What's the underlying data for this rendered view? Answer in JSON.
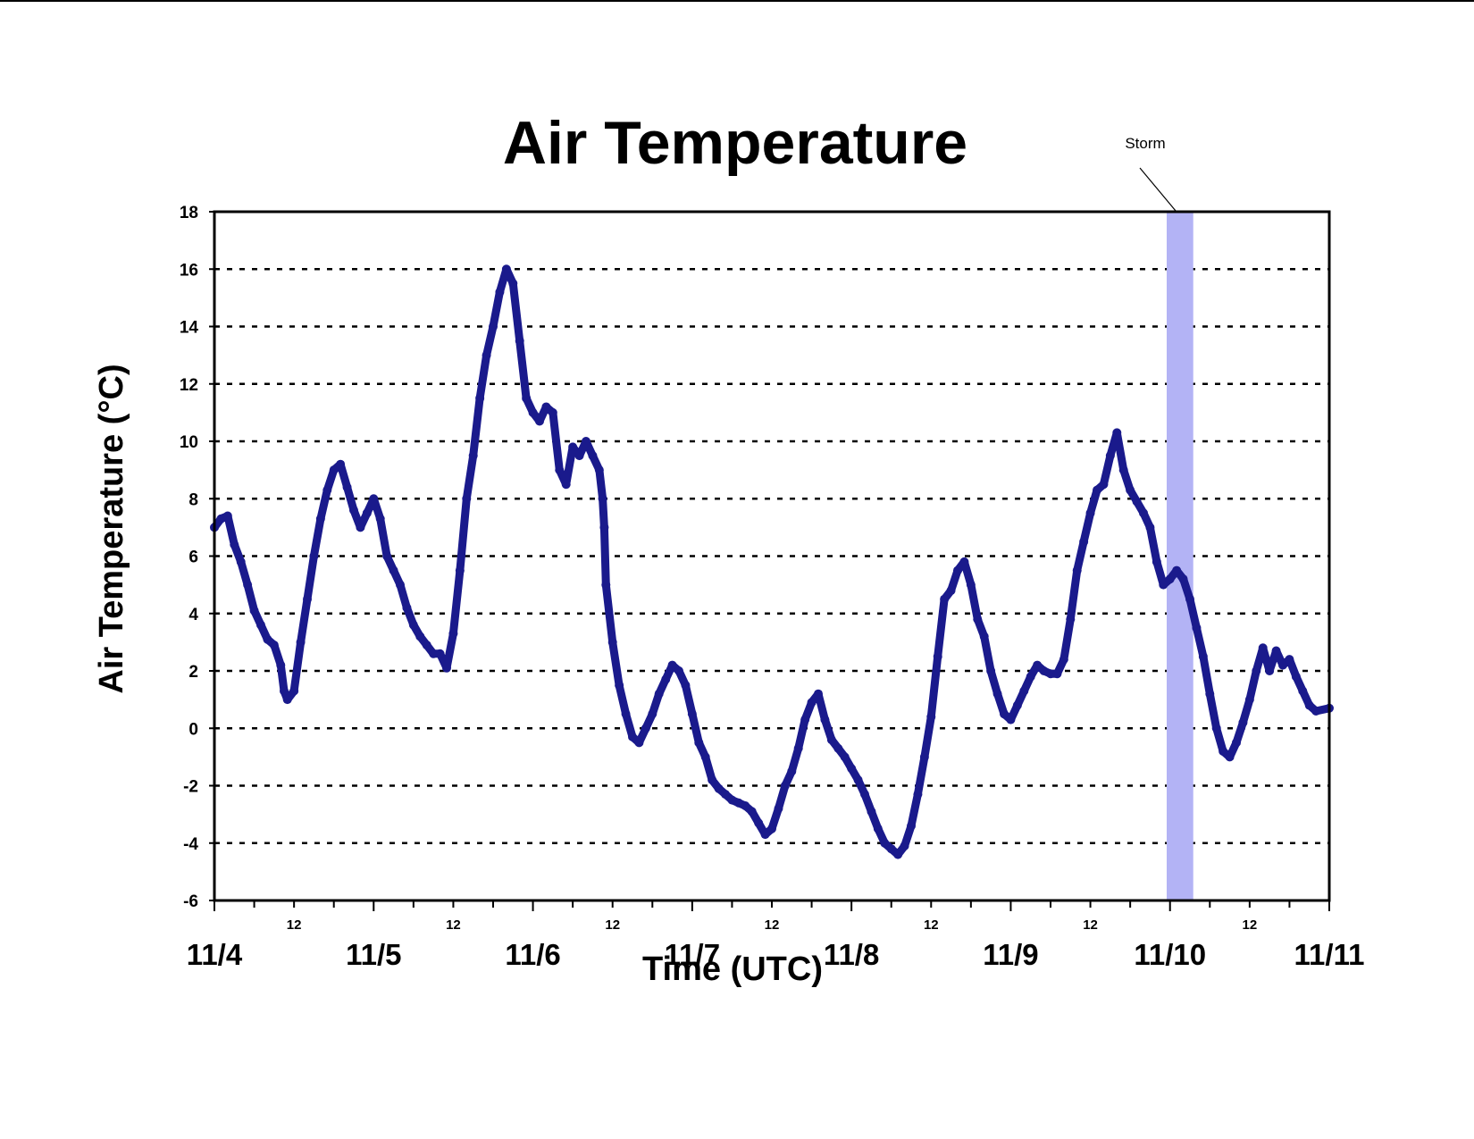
{
  "chart_data": {
    "type": "line",
    "title": "Air Temperature",
    "xlabel": "Time (UTC)",
    "ylabel": "Air Temperature (°C)",
    "ylim": [
      -6,
      18
    ],
    "yticks": [
      -6,
      -4,
      -2,
      0,
      2,
      4,
      6,
      8,
      10,
      12,
      14,
      16,
      18
    ],
    "ytick_labels": [
      "-6",
      "-4",
      "-2",
      "0",
      "2",
      "4",
      "6",
      "8",
      "10",
      "12",
      "14",
      "16",
      "18"
    ],
    "xlim": [
      "11/4 00:00",
      "11/11 00:00"
    ],
    "x_date_labels": [
      "11/4",
      "11/5",
      "11/6",
      "11/7",
      "11/8",
      "11/9",
      "11/10",
      "11/11"
    ],
    "x_noon_label": "12",
    "x_noon_labels": [
      "12",
      "12",
      "12",
      "12",
      "12",
      "12",
      "12"
    ],
    "grid": "horizontal dashed",
    "line_color": "#1a1a8c",
    "storm_band_color": "#b3b3f5",
    "storm_band": {
      "label": "Storm",
      "start": "11/9 23:30",
      "end": "11/10 03:30"
    },
    "series": [
      {
        "x_format": "M/D HH:MM",
        "points": [
          [
            "11/4 00:00",
            7.0
          ],
          [
            "11/4 01:00",
            7.3
          ],
          [
            "11/4 02:00",
            7.4
          ],
          [
            "11/4 03:00",
            6.4
          ],
          [
            "11/4 04:00",
            5.8
          ],
          [
            "11/4 05:00",
            5.0
          ],
          [
            "11/4 06:00",
            4.1
          ],
          [
            "11/4 07:00",
            3.6
          ],
          [
            "11/4 08:00",
            3.1
          ],
          [
            "11/4 09:00",
            2.9
          ],
          [
            "11/4 10:00",
            2.2
          ],
          [
            "11/4 10:30",
            1.3
          ],
          [
            "11/4 11:00",
            1.0
          ],
          [
            "11/4 12:00",
            1.3
          ],
          [
            "11/4 13:00",
            3.0
          ],
          [
            "11/4 14:00",
            4.5
          ],
          [
            "11/4 15:00",
            6.0
          ],
          [
            "11/4 16:00",
            7.3
          ],
          [
            "11/4 17:00",
            8.3
          ],
          [
            "11/4 18:00",
            9.0
          ],
          [
            "11/4 19:00",
            9.2
          ],
          [
            "11/4 20:00",
            8.4
          ],
          [
            "11/4 21:00",
            7.6
          ],
          [
            "11/4 22:00",
            7.0
          ],
          [
            "11/4 23:00",
            7.5
          ],
          [
            "11/5 00:00",
            8.0
          ],
          [
            "11/5 01:00",
            7.3
          ],
          [
            "11/5 02:00",
            6.0
          ],
          [
            "11/5 03:00",
            5.5
          ],
          [
            "11/5 04:00",
            5.0
          ],
          [
            "11/5 05:00",
            4.2
          ],
          [
            "11/5 06:00",
            3.6
          ],
          [
            "11/5 07:00",
            3.2
          ],
          [
            "11/5 08:00",
            2.9
          ],
          [
            "11/5 09:00",
            2.6
          ],
          [
            "11/5 10:00",
            2.6
          ],
          [
            "11/5 11:00",
            2.1
          ],
          [
            "11/5 12:00",
            3.3
          ],
          [
            "11/5 13:00",
            5.5
          ],
          [
            "11/5 14:00",
            8.0
          ],
          [
            "11/5 15:00",
            9.5
          ],
          [
            "11/5 16:00",
            11.5
          ],
          [
            "11/5 17:00",
            13.0
          ],
          [
            "11/5 18:00",
            14.0
          ],
          [
            "11/5 19:00",
            15.2
          ],
          [
            "11/5 20:00",
            16.0
          ],
          [
            "11/5 21:00",
            15.5
          ],
          [
            "11/5 22:00",
            13.5
          ],
          [
            "11/5 23:00",
            11.5
          ],
          [
            "11/6 00:00",
            11.0
          ],
          [
            "11/6 01:00",
            10.7
          ],
          [
            "11/6 02:00",
            11.2
          ],
          [
            "11/6 03:00",
            11.0
          ],
          [
            "11/6 04:00",
            9.0
          ],
          [
            "11/6 05:00",
            8.5
          ],
          [
            "11/6 06:00",
            9.8
          ],
          [
            "11/6 07:00",
            9.5
          ],
          [
            "11/6 08:00",
            10.0
          ],
          [
            "11/6 09:00",
            9.5
          ],
          [
            "11/6 10:00",
            9.0
          ],
          [
            "11/6 10:30",
            8.0
          ],
          [
            "11/6 10:45",
            7.0
          ],
          [
            "11/6 11:00",
            5.0
          ],
          [
            "11/6 12:00",
            3.0
          ],
          [
            "11/6 13:00",
            1.5
          ],
          [
            "11/6 14:00",
            0.5
          ],
          [
            "11/6 15:00",
            -0.3
          ],
          [
            "11/6 16:00",
            -0.5
          ],
          [
            "11/6 17:00",
            0.0
          ],
          [
            "11/6 18:00",
            0.5
          ],
          [
            "11/6 19:00",
            1.2
          ],
          [
            "11/6 20:00",
            1.7
          ],
          [
            "11/6 21:00",
            2.2
          ],
          [
            "11/6 22:00",
            2.0
          ],
          [
            "11/6 23:00",
            1.5
          ],
          [
            "11/7 00:00",
            0.5
          ],
          [
            "11/7 01:00",
            -0.5
          ],
          [
            "11/7 02:00",
            -1.0
          ],
          [
            "11/7 03:00",
            -1.8
          ],
          [
            "11/7 04:00",
            -2.1
          ],
          [
            "11/7 05:00",
            -2.3
          ],
          [
            "11/7 06:00",
            -2.5
          ],
          [
            "11/7 07:00",
            -2.6
          ],
          [
            "11/7 08:00",
            -2.7
          ],
          [
            "11/7 09:00",
            -2.9
          ],
          [
            "11/7 10:00",
            -3.3
          ],
          [
            "11/7 11:00",
            -3.7
          ],
          [
            "11/7 12:00",
            -3.5
          ],
          [
            "11/7 13:00",
            -2.8
          ],
          [
            "11/7 14:00",
            -2.0
          ],
          [
            "11/7 15:00",
            -1.5
          ],
          [
            "11/7 16:00",
            -0.7
          ],
          [
            "11/7 17:00",
            0.3
          ],
          [
            "11/7 18:00",
            0.9
          ],
          [
            "11/7 19:00",
            1.2
          ],
          [
            "11/7 20:00",
            0.3
          ],
          [
            "11/7 21:00",
            -0.4
          ],
          [
            "11/7 22:00",
            -0.7
          ],
          [
            "11/7 23:00",
            -1.0
          ],
          [
            "11/8 00:00",
            -1.4
          ],
          [
            "11/8 01:00",
            -1.8
          ],
          [
            "11/8 02:00",
            -2.3
          ],
          [
            "11/8 03:00",
            -2.9
          ],
          [
            "11/8 04:00",
            -3.5
          ],
          [
            "11/8 05:00",
            -4.0
          ],
          [
            "11/8 06:00",
            -4.2
          ],
          [
            "11/8 07:00",
            -4.4
          ],
          [
            "11/8 08:00",
            -4.1
          ],
          [
            "11/8 09:00",
            -3.4
          ],
          [
            "11/8 10:00",
            -2.3
          ],
          [
            "11/8 11:00",
            -1.0
          ],
          [
            "11/8 12:00",
            0.4
          ],
          [
            "11/8 13:00",
            2.5
          ],
          [
            "11/8 14:00",
            4.5
          ],
          [
            "11/8 15:00",
            4.8
          ],
          [
            "11/8 16:00",
            5.5
          ],
          [
            "11/8 17:00",
            5.8
          ],
          [
            "11/8 18:00",
            5.0
          ],
          [
            "11/8 19:00",
            3.8
          ],
          [
            "11/8 20:00",
            3.2
          ],
          [
            "11/8 21:00",
            2.0
          ],
          [
            "11/8 22:00",
            1.2
          ],
          [
            "11/8 23:00",
            0.5
          ],
          [
            "11/9 00:00",
            0.3
          ],
          [
            "11/9 01:00",
            0.8
          ],
          [
            "11/9 02:00",
            1.3
          ],
          [
            "11/9 03:00",
            1.8
          ],
          [
            "11/9 04:00",
            2.2
          ],
          [
            "11/9 05:00",
            2.0
          ],
          [
            "11/9 06:00",
            1.9
          ],
          [
            "11/9 07:00",
            1.9
          ],
          [
            "11/9 08:00",
            2.4
          ],
          [
            "11/9 09:00",
            3.8
          ],
          [
            "11/9 10:00",
            5.5
          ],
          [
            "11/9 11:00",
            6.5
          ],
          [
            "11/9 12:00",
            7.5
          ],
          [
            "11/9 13:00",
            8.3
          ],
          [
            "11/9 14:00",
            8.5
          ],
          [
            "11/9 15:00",
            9.5
          ],
          [
            "11/9 16:00",
            10.3
          ],
          [
            "11/9 17:00",
            9.0
          ],
          [
            "11/9 18:00",
            8.3
          ],
          [
            "11/9 19:00",
            7.9
          ],
          [
            "11/9 20:00",
            7.5
          ],
          [
            "11/9 21:00",
            7.0
          ],
          [
            "11/9 22:00",
            5.8
          ],
          [
            "11/9 23:00",
            5.0
          ],
          [
            "11/10 00:00",
            5.2
          ],
          [
            "11/10 01:00",
            5.5
          ],
          [
            "11/10 02:00",
            5.2
          ],
          [
            "11/10 03:00",
            4.5
          ],
          [
            "11/10 04:00",
            3.5
          ],
          [
            "11/10 05:00",
            2.5
          ],
          [
            "11/10 06:00",
            1.2
          ],
          [
            "11/10 07:00",
            0.0
          ],
          [
            "11/10 08:00",
            -0.8
          ],
          [
            "11/10 09:00",
            -1.0
          ],
          [
            "11/10 10:00",
            -0.5
          ],
          [
            "11/10 11:00",
            0.2
          ],
          [
            "11/10 12:00",
            1.0
          ],
          [
            "11/10 13:00",
            2.0
          ],
          [
            "11/10 14:00",
            2.8
          ],
          [
            "11/10 15:00",
            2.0
          ],
          [
            "11/10 16:00",
            2.7
          ],
          [
            "11/10 17:00",
            2.2
          ],
          [
            "11/10 18:00",
            2.4
          ],
          [
            "11/10 19:00",
            1.8
          ],
          [
            "11/10 20:00",
            1.3
          ],
          [
            "11/10 21:00",
            0.8
          ],
          [
            "11/10 22:00",
            0.6
          ],
          [
            "11/11 00:00",
            0.7
          ]
        ]
      }
    ]
  }
}
